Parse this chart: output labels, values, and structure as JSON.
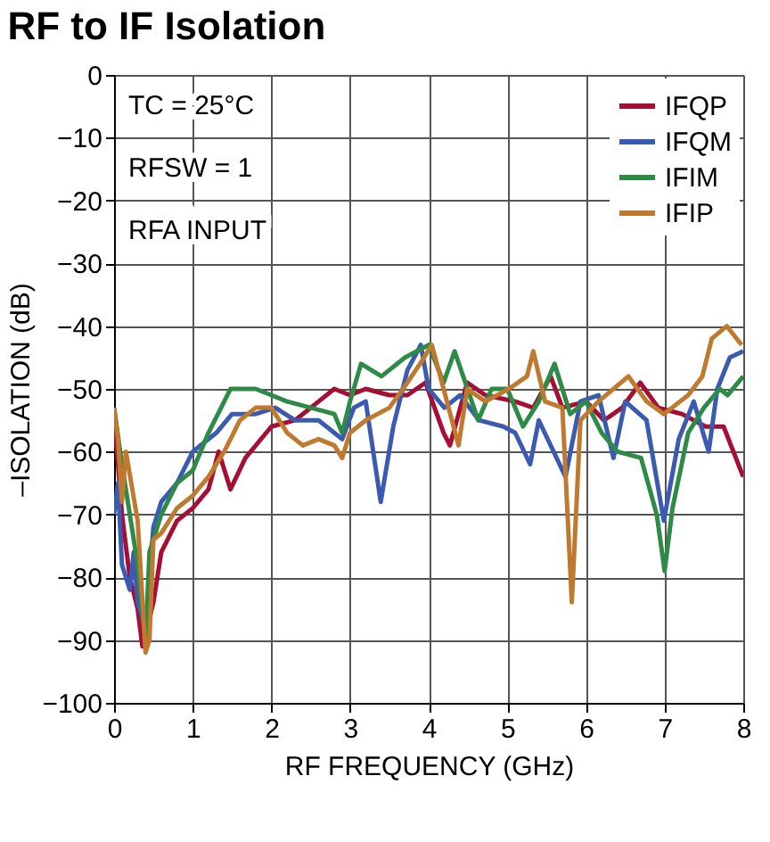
{
  "chart_data": {
    "type": "line",
    "title": "RF to IF Isolation",
    "xlabel": "RF FREQUENCY (GHz)",
    "ylabel": "–ISOLATION (dB)",
    "xlim": [
      0,
      8
    ],
    "xticks": [
      0,
      1,
      2,
      3,
      4,
      5,
      6,
      7,
      8
    ],
    "ylim": [
      -100,
      0
    ],
    "yticks": [
      -100,
      -90,
      -80,
      -70,
      -60,
      -50,
      -40,
      -30,
      -20,
      -10,
      0
    ],
    "grid": true,
    "legend": "top right",
    "line_style": "solid",
    "marker": "none",
    "annotations": [
      "TC = 25°C",
      "RFSW = 1",
      "RFA INPUT"
    ],
    "series": [
      {
        "name": "IFQP",
        "color": "#a50f34",
        "x": [
          0,
          0.1,
          0.2,
          0.3,
          0.36,
          0.5,
          0.6,
          0.8,
          1.0,
          1.2,
          1.33,
          1.48,
          1.67,
          2.0,
          2.3,
          2.6,
          2.8,
          3.0,
          3.2,
          3.5,
          3.73,
          3.96,
          4.19,
          4.27,
          4.49,
          4.72,
          5.1,
          5.33,
          5.55,
          5.7,
          6.0,
          6.23,
          6.46,
          6.69,
          6.92,
          7.22,
          7.52,
          7.75,
          8.0
        ],
        "values": [
          -54,
          -70,
          -80,
          -85,
          -91,
          -84,
          -76,
          -71,
          -69,
          -66,
          -60,
          -66,
          -61,
          -56,
          -55,
          -52,
          -50,
          -51,
          -50,
          -51,
          -51,
          -49,
          -57,
          -59,
          -49,
          -51,
          -52,
          -53,
          -48,
          -53,
          -52,
          -55,
          -53,
          -49,
          -53,
          -54,
          -56,
          -56,
          -64
        ]
      },
      {
        "name": "IFQM",
        "color": "#3a5bb0",
        "x": [
          0,
          0.05,
          0.1,
          0.2,
          0.25,
          0.3,
          0.4,
          0.5,
          0.6,
          0.8,
          1.0,
          1.3,
          1.5,
          1.8,
          2.05,
          2.3,
          2.6,
          2.9,
          3.05,
          3.2,
          3.39,
          3.55,
          3.73,
          3.9,
          4.0,
          4.2,
          4.4,
          4.64,
          4.95,
          5.1,
          5.29,
          5.4,
          5.74,
          5.93,
          6.16,
          6.35,
          6.5,
          6.77,
          6.99,
          7.18,
          7.37,
          7.56,
          7.67,
          7.83,
          8.0
        ],
        "values": [
          -70,
          -65,
          -78,
          -82,
          -76,
          -84,
          -88,
          -72,
          -68,
          -65,
          -60,
          -57,
          -54,
          -54,
          -53,
          -55,
          -55,
          -58,
          -53,
          -52,
          -68,
          -56,
          -47,
          -43,
          -50,
          -53,
          -51,
          -55,
          -56,
          -57,
          -62,
          -55,
          -64,
          -52,
          -51,
          -61,
          -52,
          -55,
          -71,
          -58,
          -52,
          -60,
          -50,
          -45,
          -44
        ]
      },
      {
        "name": "IFIM",
        "color": "#2e8b47",
        "x": [
          0,
          0.1,
          0.3,
          0.4,
          0.45,
          0.6,
          0.8,
          1.0,
          1.2,
          1.48,
          1.8,
          2.0,
          2.2,
          2.5,
          2.8,
          2.9,
          3.0,
          3.14,
          3.4,
          3.7,
          4.0,
          4.19,
          4.33,
          4.63,
          4.8,
          5.0,
          5.2,
          5.4,
          5.6,
          5.8,
          6.0,
          6.2,
          6.4,
          6.7,
          6.9,
          7.0,
          7.1,
          7.3,
          7.5,
          7.7,
          7.8,
          8.0
        ],
        "values": [
          -53,
          -62,
          -78,
          -90,
          -76,
          -70,
          -65,
          -63,
          -57,
          -50,
          -50,
          -51,
          -52,
          -53,
          -54,
          -57,
          -52,
          -46,
          -48,
          -45,
          -43,
          -49,
          -44,
          -55,
          -50,
          -50,
          -56,
          -52,
          -46,
          -54,
          -52,
          -57,
          -60,
          -61,
          -70,
          -79,
          -69,
          -57,
          -53,
          -50,
          -51,
          -48
        ]
      },
      {
        "name": "IFIP",
        "color": "#c07a30",
        "x": [
          0,
          0.05,
          0.1,
          0.15,
          0.3,
          0.4,
          0.45,
          0.5,
          0.6,
          0.8,
          1.0,
          1.2,
          1.4,
          1.6,
          1.8,
          2.0,
          2.1,
          2.2,
          2.4,
          2.6,
          2.8,
          2.9,
          3.0,
          3.2,
          3.5,
          3.73,
          3.89,
          4.04,
          4.19,
          4.38,
          4.49,
          4.72,
          5.02,
          5.25,
          5.33,
          5.48,
          5.7,
          5.82,
          5.93,
          6.16,
          6.54,
          6.77,
          6.99,
          7.3,
          7.48,
          7.6,
          7.79,
          7.98
        ],
        "values": [
          -53,
          -58,
          -68,
          -60,
          -71,
          -92,
          -90,
          -74,
          -73,
          -69,
          -67,
          -64,
          -60,
          -55,
          -53,
          -53,
          -55,
          -57,
          -59,
          -58,
          -59,
          -61,
          -57,
          -55,
          -53,
          -49,
          -46,
          -43,
          -50,
          -59,
          -50,
          -52,
          -50,
          -48,
          -44,
          -52,
          -53,
          -84,
          -55,
          -52,
          -48,
          -52,
          -54,
          -51,
          -48,
          -42,
          -40,
          -43
        ]
      }
    ]
  }
}
